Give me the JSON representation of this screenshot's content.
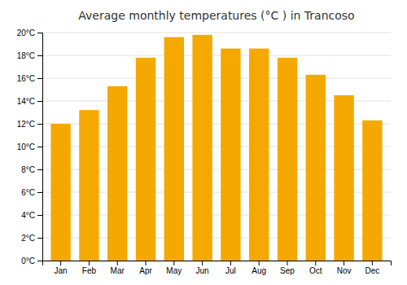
{
  "chart_data": {
    "type": "bar",
    "title": "Average monthly temperatures (°C ) in Trancoso",
    "categories": [
      "Jan",
      "Feb",
      "Mar",
      "Apr",
      "May",
      "Jun",
      "Jul",
      "Aug",
      "Sep",
      "Oct",
      "Nov",
      "Dec"
    ],
    "values": [
      12.0,
      13.2,
      15.3,
      17.8,
      19.6,
      19.8,
      18.6,
      18.6,
      17.8,
      16.3,
      14.5,
      12.3
    ],
    "color": "#F5A800",
    "ylim": [
      0,
      20
    ],
    "yticks": [
      {
        "value": 0,
        "label": "0°C"
      },
      {
        "value": 2,
        "label": "2°C"
      },
      {
        "value": 4,
        "label": "4°C"
      },
      {
        "value": 6,
        "label": "6°C"
      },
      {
        "value": 8,
        "label": "8°C"
      },
      {
        "value": 10,
        "label": "10°C"
      },
      {
        "value": 12,
        "label": "12°C"
      },
      {
        "value": 14,
        "label": "14°C"
      },
      {
        "value": 16,
        "label": "16°C"
      },
      {
        "value": 18,
        "label": "18°C"
      },
      {
        "value": 20,
        "label": "20°C"
      }
    ],
    "grid": true
  }
}
